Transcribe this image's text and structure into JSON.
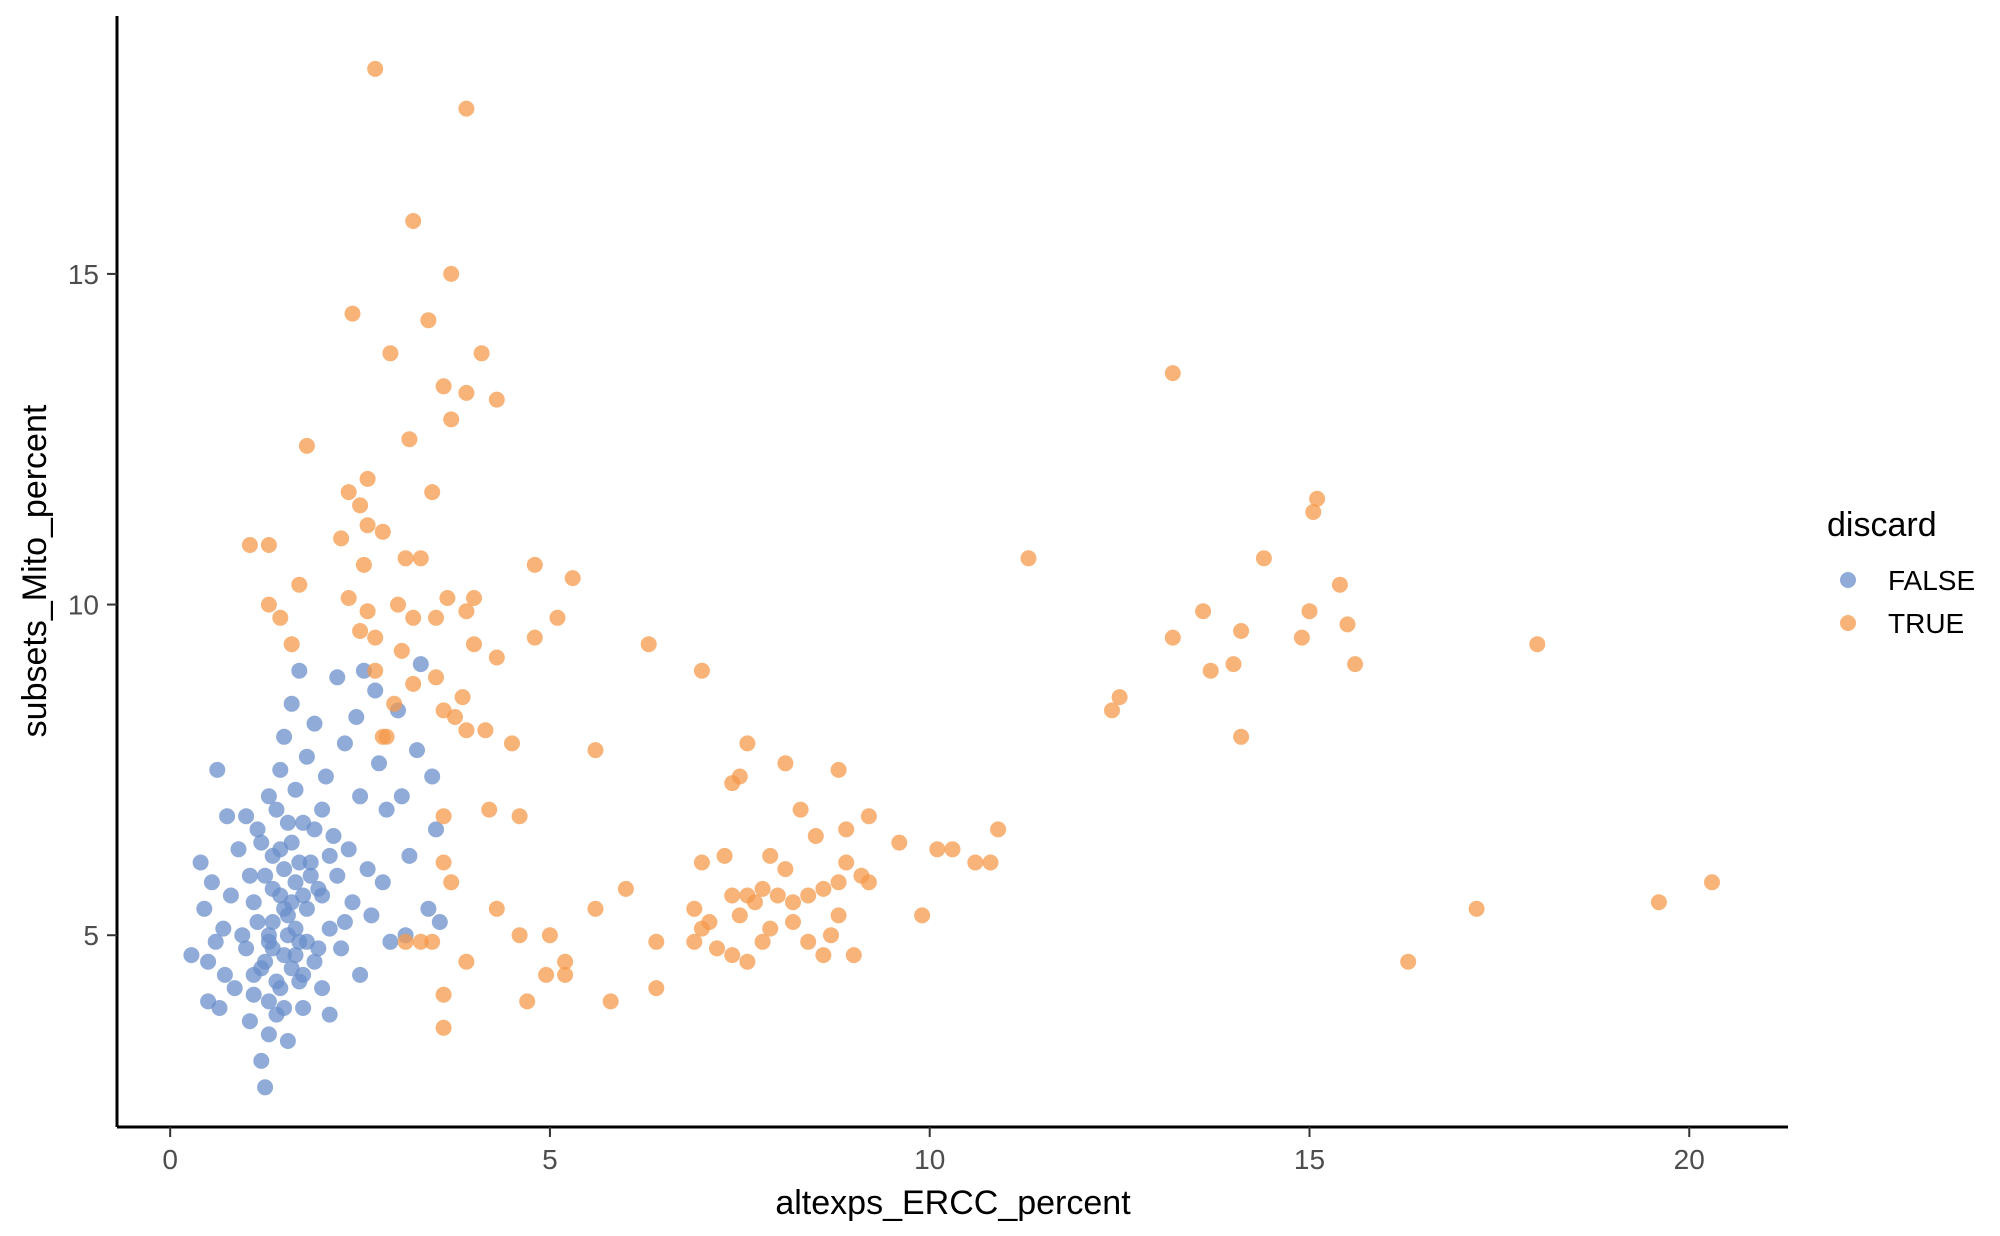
{
  "chart_data": {
    "type": "scatter",
    "xlabel": "altexps_ERCC_percent",
    "ylabel": "subsets_Mito_percent",
    "xlim": [
      -0.7,
      21.3
    ],
    "ylim": [
      2.1,
      18.9
    ],
    "xticks": [
      0,
      5,
      10,
      15,
      20
    ],
    "xtick_labels": [
      "0",
      "5",
      "10",
      "15",
      "20"
    ],
    "yticks": [
      5,
      10,
      15
    ],
    "ytick_labels": [
      "5",
      "10",
      "15"
    ],
    "grid": false,
    "legend": {
      "title": "discard",
      "position": "right",
      "entries": [
        "FALSE",
        "TRUE"
      ]
    },
    "colors": {
      "FALSE": "#6B8FCB",
      "TRUE": "#F59A4C"
    },
    "point_opacity": 0.75,
    "series": [
      {
        "name": "FALSE",
        "points": [
          [
            0.28,
            4.7
          ],
          [
            0.4,
            6.1
          ],
          [
            0.45,
            5.4
          ],
          [
            0.5,
            4.6
          ],
          [
            0.5,
            4.0
          ],
          [
            0.55,
            5.8
          ],
          [
            0.6,
            4.9
          ],
          [
            0.62,
            7.5
          ],
          [
            0.65,
            3.9
          ],
          [
            0.7,
            5.1
          ],
          [
            0.72,
            4.4
          ],
          [
            0.75,
            6.8
          ],
          [
            0.8,
            5.6
          ],
          [
            0.85,
            4.2
          ],
          [
            0.9,
            6.3
          ],
          [
            0.95,
            5.0
          ],
          [
            1.0,
            6.8
          ],
          [
            1.0,
            4.8
          ],
          [
            1.05,
            3.7
          ],
          [
            1.1,
            5.5
          ],
          [
            1.1,
            4.1
          ],
          [
            1.15,
            6.6
          ],
          [
            1.2,
            4.5
          ],
          [
            1.2,
            3.1
          ],
          [
            1.25,
            2.7
          ],
          [
            1.25,
            5.9
          ],
          [
            1.3,
            4.9
          ],
          [
            1.3,
            3.5
          ],
          [
            1.3,
            7.1
          ],
          [
            1.35,
            5.2
          ],
          [
            1.35,
            6.2
          ],
          [
            1.4,
            4.3
          ],
          [
            1.4,
            3.8
          ],
          [
            1.45,
            5.6
          ],
          [
            1.45,
            7.5
          ],
          [
            1.5,
            4.7
          ],
          [
            1.5,
            6.0
          ],
          [
            1.5,
            8.0
          ],
          [
            1.55,
            5.3
          ],
          [
            1.55,
            3.4
          ],
          [
            1.6,
            8.5
          ],
          [
            1.6,
            6.4
          ],
          [
            1.6,
            4.5
          ],
          [
            1.65,
            5.8
          ],
          [
            1.65,
            7.2
          ],
          [
            1.7,
            4.9
          ],
          [
            1.7,
            9.0
          ],
          [
            1.75,
            6.7
          ],
          [
            1.75,
            3.9
          ],
          [
            1.8,
            5.4
          ],
          [
            1.8,
            7.7
          ],
          [
            1.85,
            6.1
          ],
          [
            1.9,
            4.6
          ],
          [
            1.9,
            8.2
          ],
          [
            1.95,
            5.7
          ],
          [
            2.0,
            6.9
          ],
          [
            2.0,
            4.2
          ],
          [
            2.05,
            7.4
          ],
          [
            2.1,
            5.1
          ],
          [
            2.1,
            3.8
          ],
          [
            2.15,
            6.5
          ],
          [
            2.2,
            8.9
          ],
          [
            2.2,
            5.9
          ],
          [
            2.25,
            4.8
          ],
          [
            2.3,
            7.9
          ],
          [
            2.35,
            6.3
          ],
          [
            2.4,
            5.5
          ],
          [
            2.45,
            8.3
          ],
          [
            2.5,
            7.1
          ],
          [
            2.5,
            4.4
          ],
          [
            2.55,
            9.0
          ],
          [
            2.6,
            6.0
          ],
          [
            2.65,
            5.3
          ],
          [
            2.7,
            8.7
          ],
          [
            2.75,
            7.6
          ],
          [
            2.8,
            5.8
          ],
          [
            2.85,
            6.9
          ],
          [
            2.9,
            4.9
          ],
          [
            3.0,
            8.4
          ],
          [
            3.05,
            7.1
          ],
          [
            3.1,
            5.0
          ],
          [
            3.15,
            6.2
          ],
          [
            3.25,
            7.8
          ],
          [
            3.3,
            9.1
          ],
          [
            3.4,
            5.4
          ],
          [
            3.45,
            7.4
          ],
          [
            3.5,
            6.6
          ],
          [
            3.55,
            5.2
          ],
          [
            1.15,
            5.2
          ],
          [
            1.25,
            4.6
          ],
          [
            1.35,
            5.7
          ],
          [
            1.45,
            4.2
          ],
          [
            1.55,
            6.7
          ],
          [
            1.65,
            5.1
          ],
          [
            1.75,
            4.4
          ],
          [
            1.85,
            5.9
          ],
          [
            1.95,
            4.8
          ],
          [
            1.05,
            5.9
          ],
          [
            1.2,
            6.4
          ],
          [
            1.4,
            6.9
          ],
          [
            1.6,
            5.5
          ],
          [
            1.8,
            4.9
          ],
          [
            2.0,
            5.6
          ],
          [
            1.3,
            5.0
          ],
          [
            1.5,
            5.4
          ],
          [
            1.7,
            6.1
          ],
          [
            1.9,
            6.6
          ],
          [
            1.1,
            4.4
          ],
          [
            1.3,
            4.0
          ],
          [
            1.5,
            3.9
          ],
          [
            1.7,
            4.3
          ],
          [
            2.1,
            6.2
          ],
          [
            2.3,
            5.2
          ],
          [
            1.55,
            5.0
          ],
          [
            1.65,
            4.7
          ],
          [
            1.45,
            6.3
          ],
          [
            1.35,
            4.8
          ],
          [
            1.75,
            5.6
          ]
        ]
      },
      {
        "name": "TRUE",
        "points": [
          [
            2.7,
            18.1
          ],
          [
            3.9,
            17.5
          ],
          [
            3.2,
            15.8
          ],
          [
            3.7,
            15.0
          ],
          [
            2.4,
            14.4
          ],
          [
            3.4,
            14.3
          ],
          [
            2.9,
            13.8
          ],
          [
            4.1,
            13.8
          ],
          [
            3.6,
            13.3
          ],
          [
            3.9,
            13.2
          ],
          [
            4.3,
            13.1
          ],
          [
            3.7,
            12.8
          ],
          [
            3.15,
            12.5
          ],
          [
            1.8,
            12.4
          ],
          [
            2.6,
            11.9
          ],
          [
            2.35,
            11.7
          ],
          [
            3.45,
            11.7
          ],
          [
            2.5,
            11.5
          ],
          [
            2.6,
            11.2
          ],
          [
            2.8,
            11.1
          ],
          [
            1.05,
            10.9
          ],
          [
            1.3,
            10.9
          ],
          [
            2.25,
            11.0
          ],
          [
            3.1,
            10.7
          ],
          [
            3.3,
            10.7
          ],
          [
            1.7,
            10.3
          ],
          [
            2.55,
            10.6
          ],
          [
            2.35,
            10.1
          ],
          [
            1.3,
            10.0
          ],
          [
            1.45,
            9.8
          ],
          [
            2.6,
            9.9
          ],
          [
            3.0,
            10.0
          ],
          [
            3.65,
            10.1
          ],
          [
            4.0,
            10.1
          ],
          [
            3.2,
            9.8
          ],
          [
            3.5,
            9.8
          ],
          [
            3.9,
            9.9
          ],
          [
            2.5,
            9.6
          ],
          [
            2.7,
            9.5
          ],
          [
            1.6,
            9.4
          ],
          [
            3.05,
            9.3
          ],
          [
            4.0,
            9.4
          ],
          [
            2.7,
            9.0
          ],
          [
            3.5,
            8.9
          ],
          [
            3.2,
            8.8
          ],
          [
            2.95,
            8.5
          ],
          [
            3.85,
            8.6
          ],
          [
            3.6,
            8.4
          ],
          [
            2.85,
            8.0
          ],
          [
            3.9,
            8.1
          ],
          [
            4.15,
            8.1
          ],
          [
            3.75,
            8.3
          ],
          [
            4.5,
            7.9
          ],
          [
            2.8,
            8.0
          ],
          [
            4.8,
            10.6
          ],
          [
            5.3,
            10.4
          ],
          [
            4.8,
            9.5
          ],
          [
            5.1,
            9.8
          ],
          [
            4.3,
            9.2
          ],
          [
            6.3,
            9.4
          ],
          [
            7.0,
            9.0
          ],
          [
            5.6,
            7.8
          ],
          [
            7.6,
            7.9
          ],
          [
            8.1,
            7.6
          ],
          [
            8.8,
            7.5
          ],
          [
            7.5,
            7.4
          ],
          [
            7.4,
            7.3
          ],
          [
            4.2,
            6.9
          ],
          [
            4.6,
            6.8
          ],
          [
            3.6,
            6.8
          ],
          [
            8.3,
            6.9
          ],
          [
            8.5,
            6.5
          ],
          [
            8.9,
            6.6
          ],
          [
            9.2,
            6.8
          ],
          [
            10.9,
            6.6
          ],
          [
            9.6,
            6.4
          ],
          [
            10.1,
            6.3
          ],
          [
            10.3,
            6.3
          ],
          [
            10.6,
            6.1
          ],
          [
            10.8,
            6.1
          ],
          [
            7.0,
            6.1
          ],
          [
            7.3,
            6.2
          ],
          [
            7.9,
            6.2
          ],
          [
            8.1,
            6.0
          ],
          [
            8.9,
            6.1
          ],
          [
            9.1,
            5.9
          ],
          [
            6.0,
            5.7
          ],
          [
            7.4,
            5.6
          ],
          [
            7.6,
            5.6
          ],
          [
            7.7,
            5.5
          ],
          [
            7.8,
            5.7
          ],
          [
            8.0,
            5.6
          ],
          [
            8.2,
            5.5
          ],
          [
            8.4,
            5.6
          ],
          [
            8.6,
            5.7
          ],
          [
            8.8,
            5.8
          ],
          [
            9.2,
            5.8
          ],
          [
            6.9,
            5.4
          ],
          [
            7.1,
            5.2
          ],
          [
            7.5,
            5.3
          ],
          [
            7.9,
            5.1
          ],
          [
            8.2,
            5.2
          ],
          [
            8.8,
            5.3
          ],
          [
            9.9,
            5.3
          ],
          [
            5.6,
            5.4
          ],
          [
            6.4,
            4.9
          ],
          [
            6.9,
            4.9
          ],
          [
            7.0,
            5.1
          ],
          [
            7.2,
            4.8
          ],
          [
            7.8,
            4.9
          ],
          [
            8.4,
            4.9
          ],
          [
            8.7,
            5.0
          ],
          [
            9.0,
            4.7
          ],
          [
            8.6,
            4.7
          ],
          [
            7.4,
            4.7
          ],
          [
            7.6,
            4.6
          ],
          [
            4.3,
            5.4
          ],
          [
            4.6,
            5.0
          ],
          [
            5.0,
            5.0
          ],
          [
            5.2,
            4.6
          ],
          [
            4.95,
            4.4
          ],
          [
            5.2,
            4.4
          ],
          [
            3.3,
            4.9
          ],
          [
            3.45,
            4.9
          ],
          [
            3.9,
            4.6
          ],
          [
            3.6,
            4.1
          ],
          [
            4.7,
            4.0
          ],
          [
            5.8,
            4.0
          ],
          [
            6.4,
            4.2
          ],
          [
            3.6,
            3.6
          ],
          [
            3.1,
            4.9
          ],
          [
            3.7,
            5.8
          ],
          [
            3.6,
            6.1
          ],
          [
            11.3,
            10.7
          ],
          [
            13.2,
            13.5
          ],
          [
            12.4,
            8.4
          ],
          [
            12.5,
            8.6
          ],
          [
            13.2,
            9.5
          ],
          [
            13.6,
            9.9
          ],
          [
            13.7,
            9.0
          ],
          [
            14.0,
            9.1
          ],
          [
            14.1,
            9.6
          ],
          [
            14.1,
            8.0
          ],
          [
            14.4,
            10.7
          ],
          [
            14.9,
            9.5
          ],
          [
            15.0,
            9.9
          ],
          [
            15.1,
            11.6
          ],
          [
            15.05,
            11.4
          ],
          [
            15.4,
            10.3
          ],
          [
            15.5,
            9.7
          ],
          [
            15.6,
            9.1
          ],
          [
            18.0,
            9.4
          ],
          [
            16.3,
            4.6
          ],
          [
            17.2,
            5.4
          ],
          [
            19.6,
            5.5
          ],
          [
            20.3,
            5.8
          ]
        ]
      }
    ]
  }
}
